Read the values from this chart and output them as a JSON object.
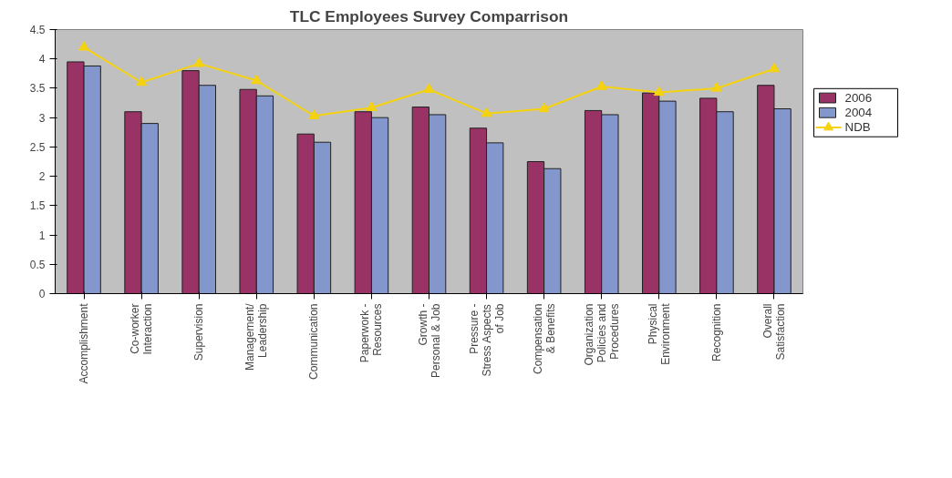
{
  "chart_data": {
    "type": "bar",
    "title": "TLC Employees Survey Comparrison",
    "categories": [
      "Accomplishment",
      "Co-worker\nInteraction",
      "Supervision",
      "Management/\nLeadership",
      "Communication",
      "Paperwork -\nResources",
      "Growth -\nPersonal & Job",
      "Pressure -\nStress Aspects\nof Job",
      "Compensation\n& Benefits",
      "Organization\nPolicies and\nProcedures",
      "Physical\nEnvironment",
      "Recognition",
      "Overall\nSatisfaction"
    ],
    "series": [
      {
        "name": "2006",
        "color": "#993366",
        "values": [
          3.95,
          3.1,
          3.8,
          3.48,
          2.72,
          3.1,
          3.18,
          2.82,
          2.25,
          3.12,
          3.42,
          3.33,
          3.55
        ]
      },
      {
        "name": "2004",
        "color": "#8497cc",
        "values": [
          3.88,
          2.9,
          3.55,
          3.37,
          2.58,
          3.0,
          3.05,
          2.57,
          2.13,
          3.05,
          3.28,
          3.1,
          3.15
        ]
      },
      {
        "name": "NDB",
        "type": "line",
        "color": "#f5d20f",
        "marker": "triangle",
        "values": [
          4.2,
          3.6,
          3.92,
          3.63,
          3.03,
          3.17,
          3.48,
          3.07,
          3.15,
          3.53,
          3.43,
          3.5,
          3.83
        ]
      }
    ],
    "ylim": [
      0,
      4.5
    ],
    "yticks": [
      0,
      0.5,
      1,
      1.5,
      2,
      2.5,
      3,
      3.5,
      4,
      4.5
    ],
    "grid": false,
    "legend": "right"
  }
}
